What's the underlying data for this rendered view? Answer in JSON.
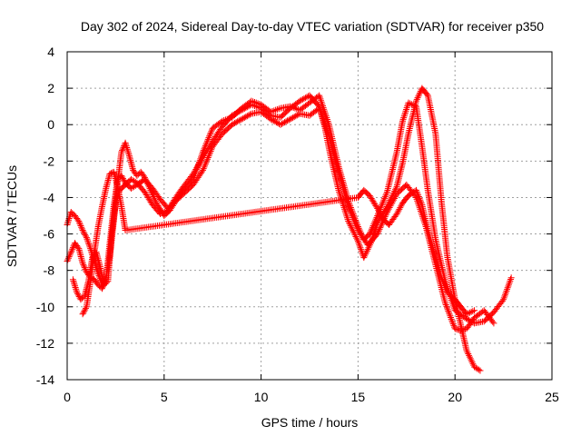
{
  "chart_data": {
    "type": "scatter",
    "title": "Day 302 of 2024, Sidereal Day-to-day VTEC variation (SDTVAR) for receiver p350",
    "xlabel": "GPS time / hours",
    "ylabel": "SDTVAR / TECUs",
    "xlim": [
      0,
      25
    ],
    "ylim": [
      -14,
      4
    ],
    "xticks": [
      "0",
      "5",
      "10",
      "15",
      "20",
      "25"
    ],
    "yticks": [
      "4",
      "2",
      "0",
      "-2",
      "-4",
      "-6",
      "-8",
      "-10",
      "-12",
      "-14"
    ],
    "grid": true,
    "legend": "none",
    "marker": "plus",
    "color": "#ff0000",
    "series": [
      {
        "x": [
          0.0,
          0.2,
          0.4,
          0.6,
          0.8,
          1.0,
          1.2,
          1.4,
          1.6,
          1.8,
          2.0,
          2.2,
          2.4,
          2.6,
          2.8,
          3.0,
          3.2,
          3.4,
          3.6,
          3.8,
          4.0,
          4.3,
          4.6,
          5.0,
          5.3,
          5.6,
          6.0,
          6.5,
          7.0,
          7.5,
          8.0,
          8.5,
          9.0,
          9.5,
          10.0,
          10.5,
          11.0,
          11.5,
          12.0,
          12.5,
          13.0,
          13.5,
          14.0,
          14.5,
          15.0,
          15.3,
          15.6,
          16.0,
          16.5,
          17.0,
          17.3,
          17.6,
          18.0,
          18.3,
          18.6,
          19.0,
          19.5,
          20.0,
          20.5,
          21.0,
          21.5,
          22.0,
          22.5,
          22.9
        ],
        "y": [
          -5.5,
          -4.8,
          -5.0,
          -5.3,
          -5.8,
          -6.2,
          -6.8,
          -7.5,
          -8.2,
          -8.7,
          -8.4,
          -7.2,
          -5.3,
          -3.2,
          -1.5,
          -1.0,
          -1.7,
          -2.5,
          -2.8,
          -2.6,
          -2.9,
          -3.6,
          -4.3,
          -5.0,
          -4.7,
          -4.2,
          -3.6,
          -3.0,
          -1.5,
          -0.2,
          0.2,
          0.4,
          0.9,
          1.3,
          1.1,
          0.7,
          0.9,
          1.0,
          0.8,
          1.2,
          1.6,
          0.0,
          -2.3,
          -4.2,
          -5.6,
          -6.3,
          -6.0,
          -5.0,
          -3.7,
          -1.5,
          0.2,
          1.2,
          1.0,
          -1.2,
          -3.6,
          -6.3,
          -8.6,
          -10.2,
          -10.6,
          -10.9,
          -10.8,
          -10.3,
          -9.6,
          -8.4
        ]
      },
      {
        "x": [
          0.0,
          0.2,
          0.4,
          0.6,
          0.8,
          1.0,
          1.2,
          1.4,
          1.6,
          1.8,
          2.0,
          2.2,
          2.4,
          2.6,
          2.8,
          3.0,
          3.3,
          3.6,
          4.0,
          4.4,
          4.8,
          5.2,
          5.6,
          6.0,
          6.5,
          7.0,
          7.5,
          8.0,
          8.5,
          9.0,
          9.5,
          10.0,
          10.5,
          11.0,
          11.5,
          12.0,
          12.5,
          13.0,
          13.5,
          14.0,
          14.5,
          15.0,
          15.5,
          16.0,
          16.5,
          17.0,
          17.5,
          18.0,
          18.5,
          19.0,
          19.5,
          20.0,
          20.3,
          20.6,
          21.0,
          21.5,
          22.0
        ],
        "y": [
          -7.5,
          -7.0,
          -6.5,
          -6.8,
          -7.6,
          -8.1,
          -8.4,
          -8.5,
          -8.8,
          -9.0,
          -8.5,
          -6.5,
          -4.5,
          -3.0,
          -2.8,
          -3.2,
          -3.5,
          -3.3,
          -3.0,
          -3.5,
          -4.1,
          -4.6,
          -4.2,
          -3.8,
          -3.3,
          -2.5,
          -1.2,
          -0.5,
          0.0,
          0.3,
          0.6,
          0.7,
          0.3,
          0.0,
          0.3,
          0.6,
          0.5,
          0.9,
          -0.6,
          -2.6,
          -4.5,
          -5.8,
          -6.6,
          -6.0,
          -4.8,
          -3.8,
          -3.3,
          -4.0,
          -5.6,
          -7.7,
          -9.8,
          -11.2,
          -11.3,
          -11.2,
          -10.6,
          -10.2,
          -10.9
        ]
      },
      {
        "x": [
          0.3,
          0.5,
          0.7,
          0.9,
          1.1,
          1.3,
          1.5,
          1.7,
          1.9,
          2.1,
          2.3,
          2.5,
          2.7,
          3.0,
          3.3,
          3.6,
          4.0,
          4.4,
          4.8,
          5.2,
          5.6,
          6.0,
          6.5,
          7.0,
          7.5,
          8.0,
          8.5,
          9.0,
          9.5,
          10.0,
          10.5,
          11.0,
          11.5,
          12.0,
          12.5,
          13.0,
          13.3,
          13.6,
          14.0,
          14.5,
          15.0,
          15.3,
          15.7,
          16.0,
          16.5,
          17.0,
          17.3,
          17.6,
          18.0,
          18.3,
          18.6,
          19.0,
          19.3,
          19.6,
          20.0,
          20.3,
          20.6,
          21.0,
          21.3
        ],
        "y": [
          -8.5,
          -9.2,
          -9.6,
          -9.4,
          -8.6,
          -7.3,
          -7.0,
          -7.8,
          -8.8,
          -8.6,
          -6.0,
          -4.3,
          -3.6,
          -3.3,
          -3.0,
          -3.2,
          -3.7,
          -4.4,
          -4.9,
          -4.7,
          -4.0,
          -3.4,
          -2.7,
          -1.8,
          -0.9,
          -0.1,
          0.5,
          0.8,
          1.1,
          0.9,
          0.5,
          0.4,
          0.9,
          1.3,
          1.6,
          1.0,
          -0.2,
          -1.8,
          -3.6,
          -5.3,
          -6.4,
          -7.3,
          -6.4,
          -5.4,
          -4.5,
          -3.4,
          -2.1,
          -0.5,
          1.3,
          2.0,
          1.6,
          -0.5,
          -4.2,
          -7.2,
          -9.6,
          -11.0,
          -12.4,
          -13.3,
          -13.5
        ]
      },
      {
        "x": [
          0.8,
          1.0,
          1.2,
          1.4,
          1.6,
          1.8,
          2.0,
          2.2,
          2.4,
          2.6,
          2.8,
          3.0,
          15.0,
          15.3,
          15.6,
          16.0,
          16.3,
          16.6,
          17.0,
          17.3,
          17.6,
          18.0,
          18.3,
          18.6,
          19.0,
          19.3,
          19.6,
          20.0,
          20.3,
          20.6,
          21.0
        ],
        "y": [
          -10.4,
          -10.0,
          -8.6,
          -7.0,
          -5.6,
          -4.5,
          -3.5,
          -2.7,
          -2.6,
          -3.4,
          -4.5,
          -5.8,
          -4.0,
          -3.6,
          -3.9,
          -4.6,
          -5.2,
          -5.5,
          -4.9,
          -4.3,
          -3.9,
          -3.6,
          -4.4,
          -5.8,
          -7.3,
          -8.4,
          -9.2,
          -9.6,
          -10.0,
          -10.4,
          -10.2
        ]
      }
    ]
  }
}
